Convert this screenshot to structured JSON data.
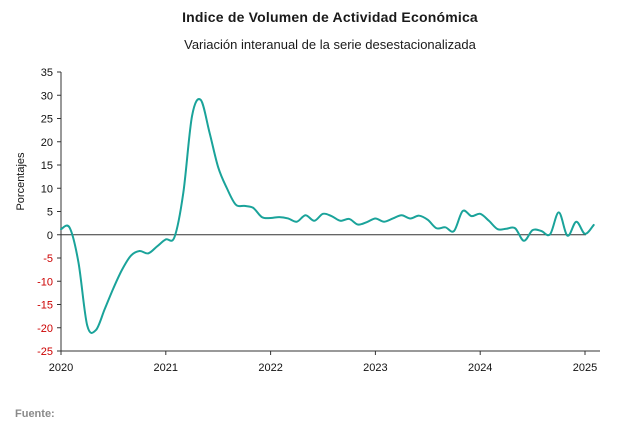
{
  "colors": {
    "line": "#1aa39a",
    "positive_tick": "#111111",
    "negative_tick": "#cc0000",
    "axis": "#333333",
    "footer": "#8a8a8a"
  },
  "footer": {
    "label": "Fuente:"
  },
  "chart_data": {
    "type": "line",
    "title": "Indice de Volumen de Actividad Económica",
    "subtitle": "Variación interanual de la serie desestacionalizada",
    "xlabel": "",
    "ylabel": "Porcentajes",
    "ylim": [
      -25,
      35
    ],
    "yticks": [
      35,
      30,
      25,
      20,
      15,
      10,
      5,
      0,
      -5,
      -10,
      -15,
      -20,
      -25
    ],
    "xlim": [
      2020,
      2025.15
    ],
    "xticks": [
      "2020",
      "2021",
      "2022",
      "2023",
      "2024",
      "2025"
    ],
    "grid": false,
    "legend": "none",
    "series": [
      {
        "x": [
          2020.0,
          2020.083,
          2020.167,
          2020.25,
          2020.333,
          2020.417,
          2020.5,
          2020.583,
          2020.667,
          2020.75,
          2020.833,
          2020.917,
          2021.0,
          2021.083,
          2021.167,
          2021.25,
          2021.333,
          2021.417,
          2021.5,
          2021.583,
          2021.667,
          2021.75,
          2021.833,
          2021.917,
          2022.0,
          2022.083,
          2022.167,
          2022.25,
          2022.333,
          2022.417,
          2022.5,
          2022.583,
          2022.667,
          2022.75,
          2022.833,
          2022.917,
          2023.0,
          2023.083,
          2023.167,
          2023.25,
          2023.333,
          2023.417,
          2023.5,
          2023.583,
          2023.667,
          2023.75,
          2023.833,
          2023.917,
          2024.0,
          2024.083,
          2024.167,
          2024.25,
          2024.333,
          2024.417,
          2024.5,
          2024.583,
          2024.667,
          2024.75,
          2024.833,
          2024.917,
          2025.0,
          2025.083
        ],
        "values": [
          1.2,
          1.5,
          -6.0,
          -19.5,
          -20.5,
          -16.0,
          -11.5,
          -7.5,
          -4.5,
          -3.5,
          -4.0,
          -2.5,
          -1.0,
          -0.5,
          9.0,
          25.5,
          29.0,
          22.0,
          14.5,
          10.0,
          6.5,
          6.2,
          5.8,
          3.8,
          3.6,
          3.8,
          3.5,
          2.8,
          4.2,
          3.0,
          4.5,
          4.0,
          3.0,
          3.4,
          2.2,
          2.7,
          3.5,
          2.8,
          3.5,
          4.2,
          3.5,
          4.1,
          3.2,
          1.4,
          1.6,
          0.8,
          5.1,
          4.0,
          4.5,
          3.0,
          1.2,
          1.3,
          1.4,
          -1.3,
          1.0,
          0.8,
          0.1,
          4.8,
          -0.2,
          2.8,
          0.2,
          2.1
        ]
      }
    ]
  }
}
